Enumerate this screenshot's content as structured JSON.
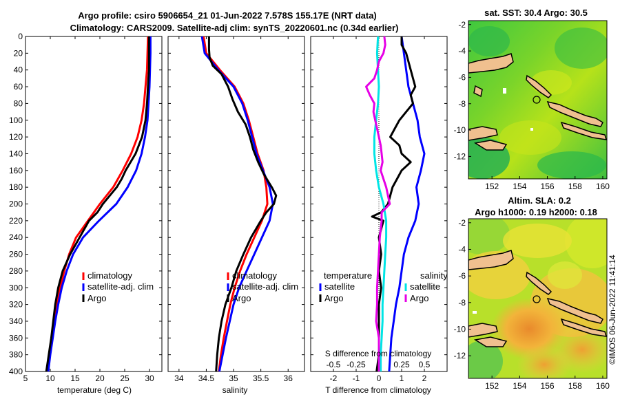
{
  "title_line1": "Argo profile: csiro 5906654_21 01-Jun-2022 7.578S 155.17E (NRT data)",
  "title_line2": "Climatology: CARS2009. Satellite-adj clim: synTS_20220601.nc (0.34d earlier)",
  "watermark": "©IMOS 06-Jun-2022 11:41:14",
  "colors": {
    "clim": "#ff0000",
    "sat": "#0000ff",
    "argo": "#000000",
    "sat_s": "#00e5e5",
    "argo_s": "#e600e6"
  },
  "chart_data": [
    {
      "type": "line",
      "id": "temperature",
      "xlabel": "temperature (deg C)",
      "ylabel": "",
      "xlim": [
        5,
        32.5
      ],
      "ylim": [
        400,
        0
      ],
      "xticks": [
        5,
        10,
        15,
        20,
        25,
        30
      ],
      "yticks": [
        0,
        20,
        40,
        60,
        80,
        100,
        120,
        140,
        160,
        180,
        200,
        220,
        240,
        260,
        280,
        300,
        320,
        340,
        360,
        380,
        400
      ],
      "legend": {
        "position": "bottom-right",
        "entries": [
          "climatology",
          "satellite-adj. clim",
          "Argo"
        ]
      },
      "series": [
        {
          "name": "climatology",
          "color": "#ff0000",
          "depth": [
            0,
            20,
            40,
            60,
            80,
            100,
            120,
            140,
            160,
            180,
            200,
            220,
            240,
            260,
            280,
            300,
            320,
            340,
            360,
            380,
            400
          ],
          "values": [
            29.7,
            29.6,
            29.5,
            29.2,
            28.9,
            28.4,
            27.6,
            26.3,
            24.6,
            22.7,
            20.0,
            17.6,
            15.2,
            13.8,
            12.8,
            12.0,
            11.3,
            10.8,
            10.3,
            9.8,
            9.4
          ]
        },
        {
          "name": "satellite-adj. clim",
          "color": "#0000ff",
          "depth": [
            0,
            20,
            40,
            60,
            80,
            100,
            120,
            140,
            160,
            180,
            200,
            220,
            240,
            260,
            280,
            300,
            320,
            340,
            360,
            380,
            400
          ],
          "values": [
            30.2,
            30.2,
            30.1,
            30.0,
            29.8,
            29.6,
            29.1,
            28.4,
            27.3,
            25.6,
            23.3,
            19.8,
            16.6,
            14.6,
            13.3,
            12.3,
            11.6,
            11.0,
            10.5,
            10.0,
            9.6
          ]
        },
        {
          "name": "Argo",
          "color": "#000000",
          "depth": [
            0,
            20,
            40,
            60,
            80,
            100,
            120,
            140,
            160,
            170,
            180,
            190,
            200,
            210,
            220,
            240,
            260,
            280,
            300,
            320,
            340,
            360,
            380,
            400
          ],
          "values": [
            29.9,
            29.9,
            29.9,
            29.7,
            29.5,
            29.2,
            28.5,
            27.2,
            25.2,
            24.4,
            23.4,
            22.0,
            20.6,
            19.5,
            17.8,
            15.9,
            14.0,
            12.5,
            11.6,
            11.0,
            10.6,
            10.2,
            9.7,
            9.2
          ]
        }
      ]
    },
    {
      "type": "line",
      "id": "salinity",
      "xlabel": "salinity",
      "xlim": [
        33.8,
        36.3
      ],
      "ylim": [
        400,
        0
      ],
      "xticks": [
        34,
        34.5,
        35,
        35.5,
        36
      ],
      "legend": {
        "position": "bottom-right",
        "entries": [
          "climatology",
          "satellite-adj. clim",
          "Argo"
        ]
      },
      "series": [
        {
          "name": "climatology",
          "color": "#ff0000",
          "depth": [
            0,
            20,
            40,
            60,
            80,
            100,
            120,
            140,
            160,
            180,
            200,
            220,
            240,
            260,
            280,
            300,
            320,
            340,
            360,
            380,
            400
          ],
          "values": [
            34.45,
            34.5,
            34.75,
            35.02,
            35.18,
            35.28,
            35.36,
            35.44,
            35.55,
            35.6,
            35.62,
            35.52,
            35.38,
            35.24,
            35.12,
            35.02,
            34.94,
            34.88,
            34.82,
            34.77,
            34.73
          ]
        },
        {
          "name": "satellite-adj. clim",
          "color": "#0000ff",
          "depth": [
            0,
            20,
            40,
            60,
            80,
            100,
            120,
            140,
            160,
            180,
            200,
            220,
            240,
            260,
            280,
            300,
            320,
            340,
            360,
            380,
            400
          ],
          "values": [
            34.42,
            34.47,
            34.72,
            35.0,
            35.16,
            35.26,
            35.34,
            35.42,
            35.54,
            35.66,
            35.72,
            35.66,
            35.52,
            35.38,
            35.24,
            35.1,
            35.0,
            34.93,
            34.86,
            34.8,
            34.74
          ]
        },
        {
          "name": "Argo",
          "color": "#000000",
          "depth": [
            0,
            15,
            25,
            35,
            45,
            60,
            75,
            90,
            105,
            120,
            135,
            150,
            165,
            180,
            190,
            200,
            210,
            220,
            240,
            260,
            280,
            300,
            320,
            340,
            360,
            380,
            400
          ],
          "values": [
            34.55,
            34.55,
            34.56,
            34.62,
            34.78,
            34.9,
            34.98,
            35.08,
            35.22,
            35.3,
            35.36,
            35.45,
            35.56,
            35.7,
            35.78,
            35.74,
            35.6,
            35.5,
            35.32,
            35.18,
            35.05,
            34.96,
            34.85,
            34.78,
            34.73,
            34.7,
            34.68
          ]
        }
      ]
    },
    {
      "type": "line",
      "id": "difference",
      "xlabel": "T difference from climatology",
      "xlabel_top": "S difference from climatology",
      "xlim": [
        -3,
        3
      ],
      "ylim": [
        400,
        0
      ],
      "xticks": [
        -2,
        -1,
        0,
        1,
        2
      ],
      "xticks_s": [
        -0.5,
        -0.25,
        0,
        0.25,
        0.5
      ],
      "xticks_s_labels": [
        "-0.5",
        "-0.25",
        "0",
        "0.25",
        "0.5"
      ],
      "legend": {
        "position": "bottom",
        "entries": [
          "temperature",
          "satellite",
          "Argo",
          "salinity",
          "satellite",
          "Argo"
        ]
      },
      "series": [
        {
          "name": "T satellite",
          "color": "#0000ff",
          "depth": [
            0,
            20,
            40,
            60,
            80,
            100,
            120,
            140,
            160,
            180,
            200,
            220,
            240,
            260,
            280,
            300,
            320,
            340,
            360,
            380,
            400
          ],
          "values": [
            1.0,
            1.1,
            1.2,
            1.3,
            1.5,
            1.7,
            1.8,
            2.0,
            1.85,
            1.65,
            1.75,
            1.6,
            1.3,
            1.1,
            1.0,
            0.9,
            0.75,
            0.65,
            0.55,
            0.5,
            0.45
          ]
        },
        {
          "name": "T Argo",
          "color": "#000000",
          "depth": [
            0,
            10,
            20,
            30,
            40,
            50,
            60,
            70,
            80,
            90,
            100,
            110,
            120,
            125,
            130,
            140,
            150,
            160,
            170,
            180,
            190,
            200,
            210,
            215,
            220,
            230,
            240,
            260,
            280,
            300,
            320,
            340,
            360,
            380,
            400
          ],
          "values": [
            1.0,
            1.0,
            1.2,
            1.3,
            1.4,
            1.5,
            1.6,
            1.4,
            1.5,
            1.2,
            0.9,
            0.7,
            0.5,
            0.7,
            0.9,
            1.0,
            1.4,
            1.0,
            0.8,
            0.6,
            0.5,
            0.4,
            0.1,
            -0.3,
            0.2,
            0.1,
            0.0,
            0.1,
            0.0,
            0.1,
            0.0,
            0.0,
            0.0,
            0.0,
            -0.1
          ]
        },
        {
          "name": "S satellite",
          "color": "#00e5e5",
          "depth": [
            0,
            20,
            40,
            60,
            80,
            100,
            120,
            140,
            160,
            180,
            200,
            220,
            240,
            260,
            280,
            300,
            320,
            340,
            360,
            380,
            400
          ],
          "values": [
            -0.01,
            -0.02,
            -0.01,
            0.0,
            -0.01,
            -0.03,
            -0.05,
            -0.05,
            -0.03,
            0.0,
            0.05,
            0.08,
            0.08,
            0.07,
            0.06,
            0.05,
            0.04,
            0.04,
            0.03,
            0.02,
            0.02
          ]
        },
        {
          "name": "S Argo",
          "color": "#e600e6",
          "depth": [
            0,
            10,
            20,
            30,
            40,
            50,
            60,
            70,
            80,
            90,
            100,
            110,
            120,
            130,
            140,
            150,
            160,
            170,
            180,
            190,
            200,
            210,
            220,
            240,
            260,
            280,
            300,
            320,
            340,
            360,
            380,
            400
          ],
          "values": [
            0.06,
            0.07,
            0.05,
            0.0,
            -0.02,
            -0.05,
            -0.14,
            -0.1,
            -0.05,
            -0.06,
            -0.04,
            -0.02,
            0.0,
            0.02,
            0.03,
            0.04,
            0.02,
            0.05,
            0.08,
            0.1,
            0.12,
            0.03,
            0.03,
            0.01,
            0.0,
            -0.01,
            -0.02,
            -0.02,
            -0.03,
            0.0,
            0.0,
            0.0
          ]
        }
      ]
    },
    {
      "type": "heatmap",
      "id": "sst_map",
      "title": "sat. SST: 30.4 Argo: 30.5",
      "xticks": [
        152,
        154,
        156,
        158,
        160
      ],
      "yticks": [
        -2,
        -4,
        -6,
        -8,
        -10,
        -12
      ],
      "xlim": [
        150.3,
        160.3
      ],
      "ylim": [
        -13.7,
        -1.7
      ],
      "marker": {
        "lon": 155.17,
        "lat": -7.578
      }
    },
    {
      "type": "heatmap",
      "id": "sla_map",
      "title_line1": "Altim. SLA: 0.2",
      "title_line2": "Argo h1000: 0.19 h2000: 0.18",
      "xticks": [
        152,
        154,
        156,
        158,
        160
      ],
      "yticks": [
        -2,
        -4,
        -6,
        -8,
        -10,
        -12
      ],
      "xlim": [
        150.3,
        160.3
      ],
      "ylim": [
        -13.7,
        -1.7
      ],
      "marker": {
        "lon": 155.17,
        "lat": -7.578
      }
    }
  ]
}
